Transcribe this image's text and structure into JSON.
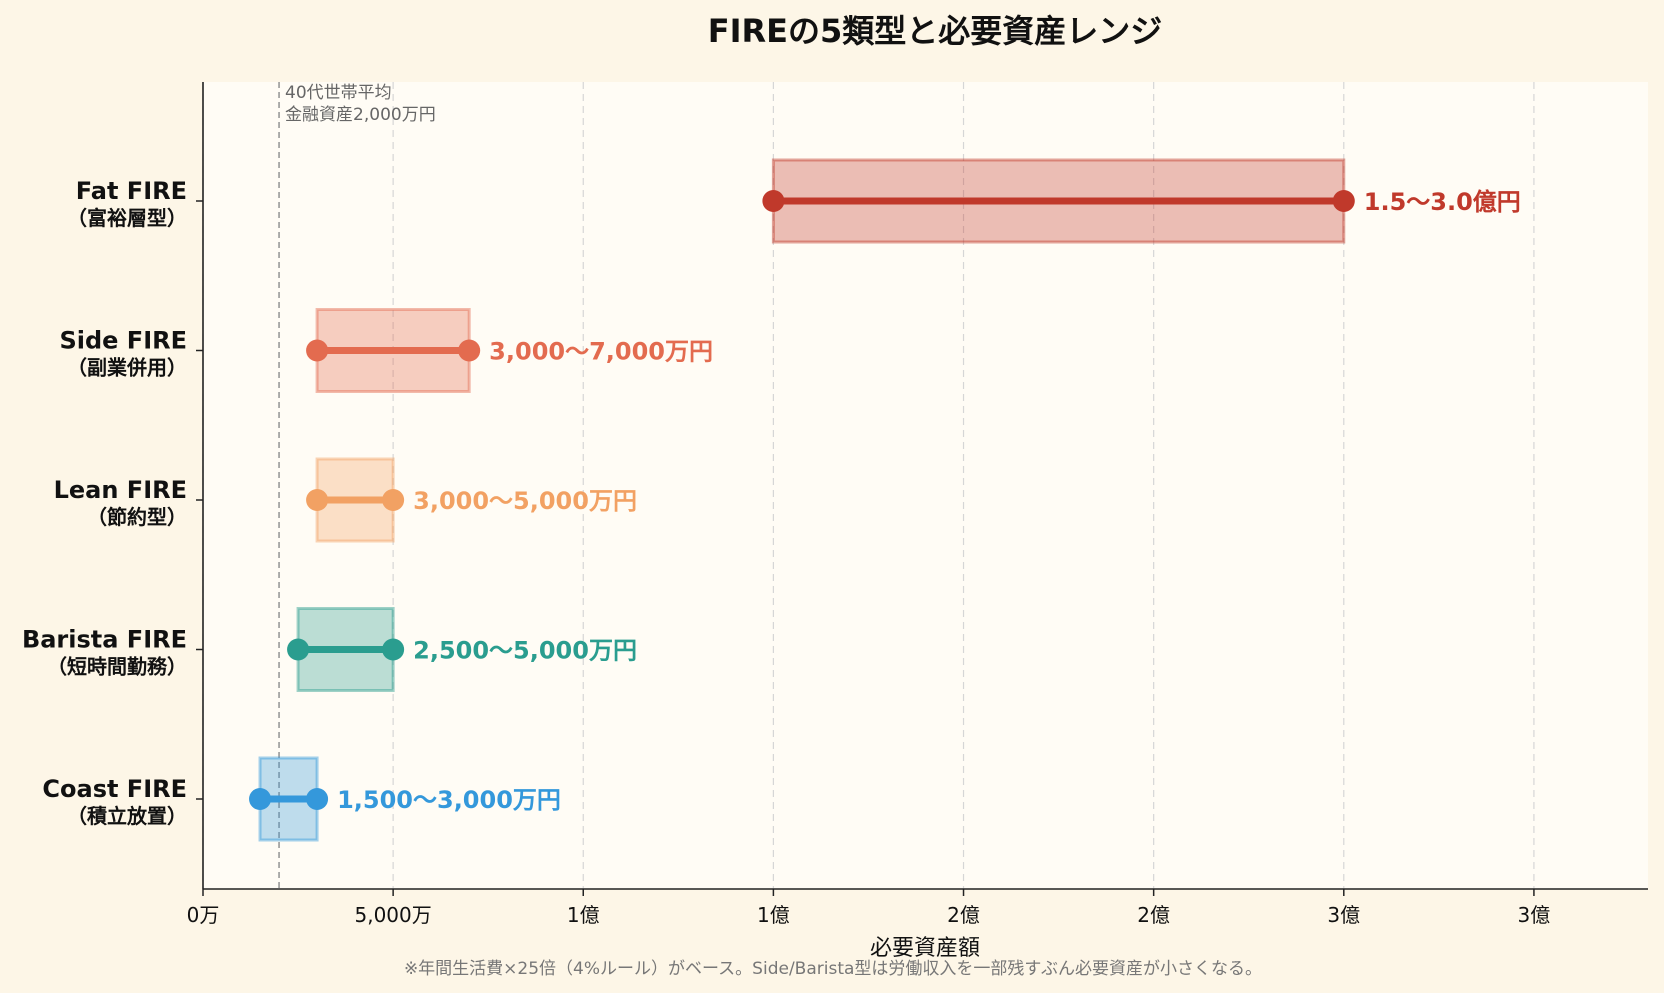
{
  "chart_data": {
    "type": "range_bar",
    "title": "FIREの5類型と必要資産レンジ",
    "xlabel": "必要資産額",
    "footnote": "※年間生活費×25倍（4%ルール）がベース。Side/Barista型は労働収入を一部残すぶん必要資産が小さくなる。",
    "x_unit": "万円",
    "xlim": [
      0,
      38000
    ],
    "x_ticks": [
      {
        "value": 0,
        "label": "0万"
      },
      {
        "value": 5000,
        "label": "5,000万"
      },
      {
        "value": 10000,
        "label": "1億"
      },
      {
        "value": 15000,
        "label": "1億"
      },
      {
        "value": 20000,
        "label": "2億"
      },
      {
        "value": 25000,
        "label": "2億"
      },
      {
        "value": 30000,
        "label": "3億"
      },
      {
        "value": 35000,
        "label": "3億"
      }
    ],
    "grid": "x-dashed",
    "reference_line": {
      "value": 2000,
      "label_line1": "40代世帯平均",
      "label_line2": "金融資産2,000万円"
    },
    "categories": [
      {
        "name": "Fat FIRE",
        "sub": "（富裕層型）",
        "min": 15000,
        "max": 30000,
        "label": "1.5〜3.0億円",
        "color": "#c0392b"
      },
      {
        "name": "Side FIRE",
        "sub": "（副業併用）",
        "min": 3000,
        "max": 7000,
        "label": "3,000〜7,000万円",
        "color": "#e36b4f"
      },
      {
        "name": "Lean FIRE",
        "sub": "（節約型）",
        "min": 3000,
        "max": 5000,
        "label": "3,000〜5,000万円",
        "color": "#f2a163"
      },
      {
        "name": "Barista FIRE",
        "sub": "（短時間勤務）",
        "min": 2500,
        "max": 5000,
        "label": "2,500〜5,000万円",
        "color": "#2a9d8f"
      },
      {
        "name": "Coast FIRE",
        "sub": "（積立放置）",
        "min": 1500,
        "max": 3000,
        "label": "1,500〜3,000万円",
        "color": "#3498db"
      }
    ]
  }
}
